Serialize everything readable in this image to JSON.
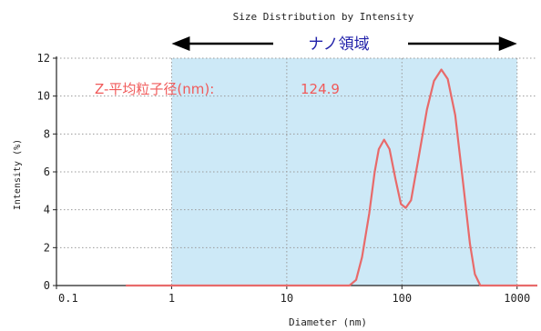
{
  "chart_data": {
    "type": "line",
    "title": "Size Distribution by Intensity",
    "xlabel": "Diameter (nm)",
    "ylabel": "Intensity (%)",
    "x_scale": "log",
    "xlim": [
      0.1,
      1500
    ],
    "ylim": [
      0,
      12
    ],
    "x_ticks": [
      "0.1",
      "1",
      "10",
      "100",
      "1000"
    ],
    "y_ticks": [
      "0",
      "2",
      "4",
      "6",
      "8",
      "10",
      "12"
    ],
    "grid": true,
    "annotations": {
      "nano_region": {
        "label": "ナノ領域",
        "range": [
          1,
          1000
        ],
        "fill_color": "#cde9f7",
        "arrow_color": "#000000",
        "text_color": "#2222aa"
      },
      "z_average": {
        "label": "Z-平均粒子径(nm):",
        "value": "124.9",
        "color": "#f05a5a"
      }
    },
    "series": [
      {
        "color": "#e86a6a",
        "points": [
          [
            0.4,
            0
          ],
          [
            35,
            0
          ],
          [
            40,
            0.3
          ],
          [
            45,
            1.5
          ],
          [
            52,
            3.8
          ],
          [
            58,
            6.0
          ],
          [
            63,
            7.2
          ],
          [
            70,
            7.7
          ],
          [
            78,
            7.2
          ],
          [
            88,
            5.6
          ],
          [
            98,
            4.3
          ],
          [
            108,
            4.1
          ],
          [
            120,
            4.5
          ],
          [
            140,
            6.8
          ],
          [
            165,
            9.3
          ],
          [
            190,
            10.8
          ],
          [
            220,
            11.4
          ],
          [
            250,
            10.9
          ],
          [
            290,
            9.0
          ],
          [
            340,
            5.4
          ],
          [
            390,
            2.2
          ],
          [
            430,
            0.6
          ],
          [
            480,
            0
          ],
          [
            1500,
            0
          ]
        ]
      }
    ]
  }
}
